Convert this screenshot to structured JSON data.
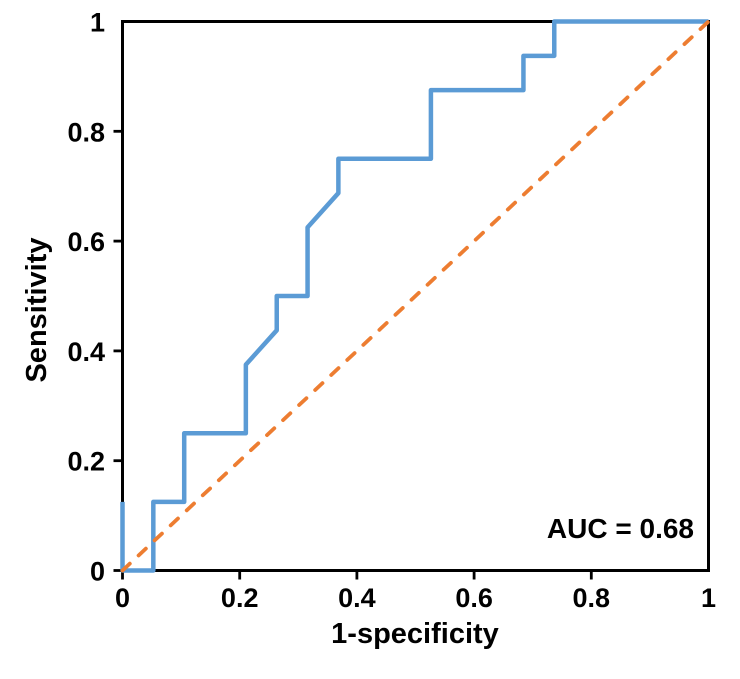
{
  "chart_data": {
    "type": "line",
    "subtype": "roc-step-curve",
    "title": "",
    "xlabel": "1-specificity",
    "ylabel": "Sensitivity",
    "xlim": [
      0,
      1
    ],
    "ylim": [
      0,
      1
    ],
    "grid": false,
    "legend": "none",
    "x_ticks": [
      0,
      0.2,
      0.4,
      0.6,
      0.8,
      1
    ],
    "x_tick_labels": [
      "0",
      "0.2",
      "0.4",
      "0.6",
      "0.8",
      "1"
    ],
    "y_ticks": [
      0,
      0.2,
      0.4,
      0.6,
      0.8,
      1
    ],
    "y_tick_labels": [
      "0",
      "0.2",
      "0.4",
      "0.6",
      "0.8",
      "1"
    ],
    "annotation": {
      "text": "AUC = 0.68",
      "auc_value": 0.68
    },
    "colors": {
      "roc_curve": "#5B9BD5",
      "reference_line": "#ED7D31",
      "axis": "#000000",
      "text": "#000000",
      "background": "#FFFFFF"
    },
    "series": [
      {
        "name": "roc-curve",
        "color": "#5B9BD5",
        "line_style": "solid",
        "line_width": 4.5,
        "points": [
          [
            0,
            0.125
          ],
          [
            0,
            0
          ],
          [
            0.0526,
            0
          ],
          [
            0.0526,
            0.125
          ],
          [
            0.1053,
            0.125
          ],
          [
            0.1053,
            0.25
          ],
          [
            0.2105,
            0.25
          ],
          [
            0.2105,
            0.375
          ],
          [
            0.2632,
            0.4375
          ],
          [
            0.2632,
            0.5
          ],
          [
            0.3158,
            0.5
          ],
          [
            0.3158,
            0.625
          ],
          [
            0.3684,
            0.6875
          ],
          [
            0.3684,
            0.75
          ],
          [
            0.5263,
            0.75
          ],
          [
            0.5263,
            0.875
          ],
          [
            0.6842,
            0.875
          ],
          [
            0.6842,
            0.9375
          ],
          [
            0.7368,
            0.9375
          ],
          [
            0.7368,
            1
          ],
          [
            1,
            1
          ]
        ]
      },
      {
        "name": "chance-diagonal",
        "color": "#ED7D31",
        "line_style": "dashed",
        "line_width": 3.8,
        "points": [
          [
            0,
            0
          ],
          [
            1,
            1
          ]
        ]
      }
    ]
  }
}
